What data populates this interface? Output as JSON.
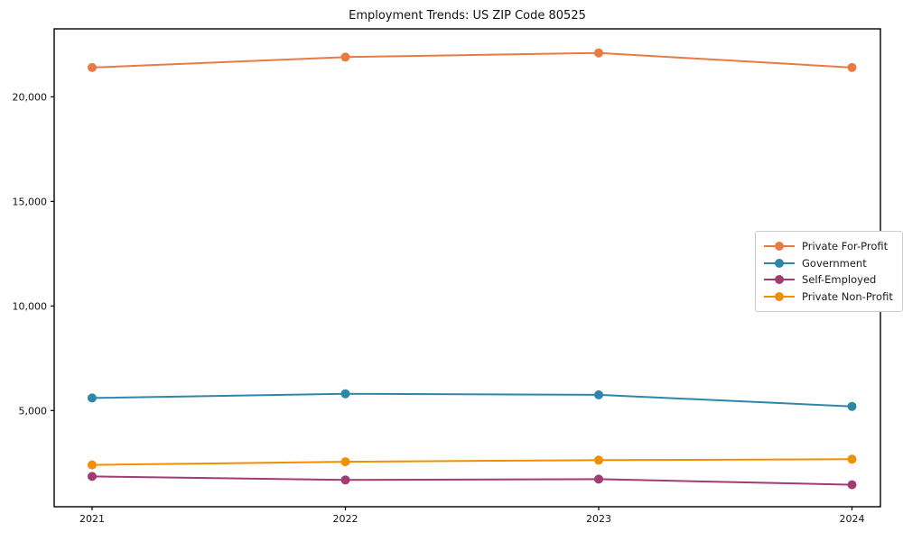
{
  "figure": {
    "background": "#ffffff",
    "text_color": "#111111",
    "spine_color": "#000000",
    "legend_border_color": "#cccccc"
  },
  "chart_data": {
    "type": "line",
    "title": "Employment Trends: US ZIP Code 80525",
    "xlabel": "",
    "ylabel": "",
    "x": [
      "2021",
      "2022",
      "2023",
      "2024"
    ],
    "ylim": [
      400,
      23250
    ],
    "yticks": [
      5000,
      10000,
      15000,
      20000
    ],
    "ytick_labels": [
      "5,000",
      "10,000",
      "15,000",
      "20,000"
    ],
    "grid": false,
    "legend_position": "center-right",
    "marker": "circle",
    "series": [
      {
        "name": "Private For-Profit",
        "color": "#E87A44",
        "values": [
          21400,
          21900,
          22100,
          21400
        ]
      },
      {
        "name": "Government",
        "color": "#2E86AB",
        "values": [
          5600,
          5800,
          5750,
          5200
        ]
      },
      {
        "name": "Self-Employed",
        "color": "#A23B72",
        "values": [
          1850,
          1680,
          1720,
          1450
        ]
      },
      {
        "name": "Private Non-Profit",
        "color": "#F18F01",
        "values": [
          2400,
          2550,
          2630,
          2670
        ]
      }
    ]
  }
}
